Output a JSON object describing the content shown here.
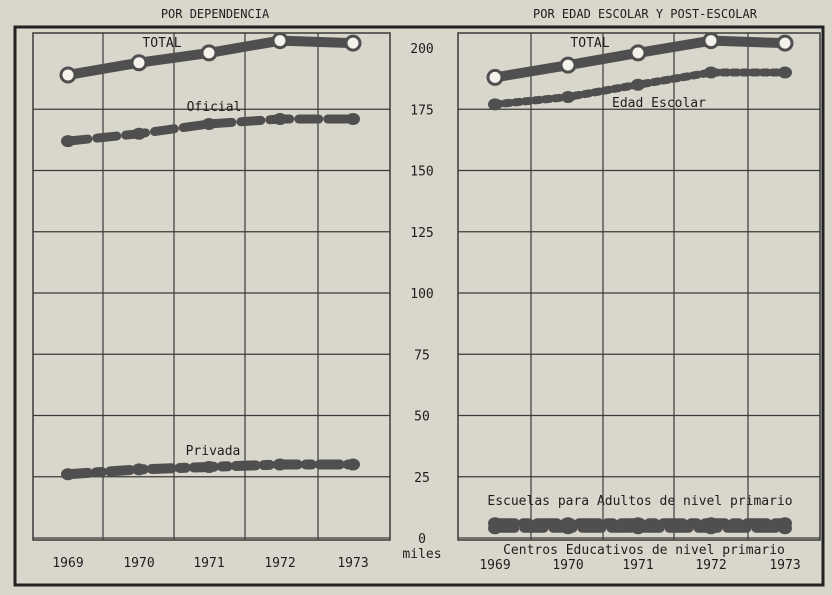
{
  "panels": {
    "left_title": "POR DEPENDENCIA",
    "right_title": "POR EDAD ESCOLAR Y POST-ESCOLAR"
  },
  "axis": {
    "ticks": [
      "0",
      "25",
      "50",
      "75",
      "100",
      "125",
      "150",
      "175",
      "200"
    ],
    "unit": "miles"
  },
  "chart_data": [
    {
      "type": "line",
      "title": "POR DEPENDENCIA",
      "x": [
        "1969",
        "1970",
        "1971",
        "1972",
        "1973"
      ],
      "ylabel": "miles",
      "ylim": [
        0,
        200
      ],
      "series": [
        {
          "name": "TOTAL",
          "values": [
            189,
            194,
            198,
            203,
            202
          ],
          "style": "solid-open-markers"
        },
        {
          "name": "Oficial",
          "values": [
            162,
            165,
            169,
            171,
            171
          ],
          "style": "dashed"
        },
        {
          "name": "Privada",
          "values": [
            26,
            28,
            29,
            30,
            30
          ],
          "style": "dash-dot"
        }
      ]
    },
    {
      "type": "line",
      "title": "POR EDAD ESCOLAR Y POST-ESCOLAR",
      "x": [
        "1969",
        "1970",
        "1971",
        "1972",
        "1973"
      ],
      "ylabel": "miles",
      "ylim": [
        0,
        200
      ],
      "series": [
        {
          "name": "TOTAL",
          "values": [
            188,
            193,
            198,
            203,
            202
          ],
          "style": "solid-open-markers"
        },
        {
          "name": "Edad Escolar",
          "values": [
            177,
            180,
            185,
            190,
            190
          ],
          "style": "dotted"
        },
        {
          "name": "Escuelas para Adultos de nivel primario",
          "values": [
            6,
            6,
            6,
            6,
            6
          ],
          "style": "dash-dot"
        },
        {
          "name": "Centros Educativos de nivel primario",
          "values": [
            4,
            4,
            4,
            4,
            4
          ],
          "style": "dashed"
        }
      ]
    }
  ],
  "colors": {
    "background": "#d9d6cc",
    "ink": "#1e1e1e",
    "grid": "#3a3a3a",
    "line": "#4f4f4f"
  }
}
